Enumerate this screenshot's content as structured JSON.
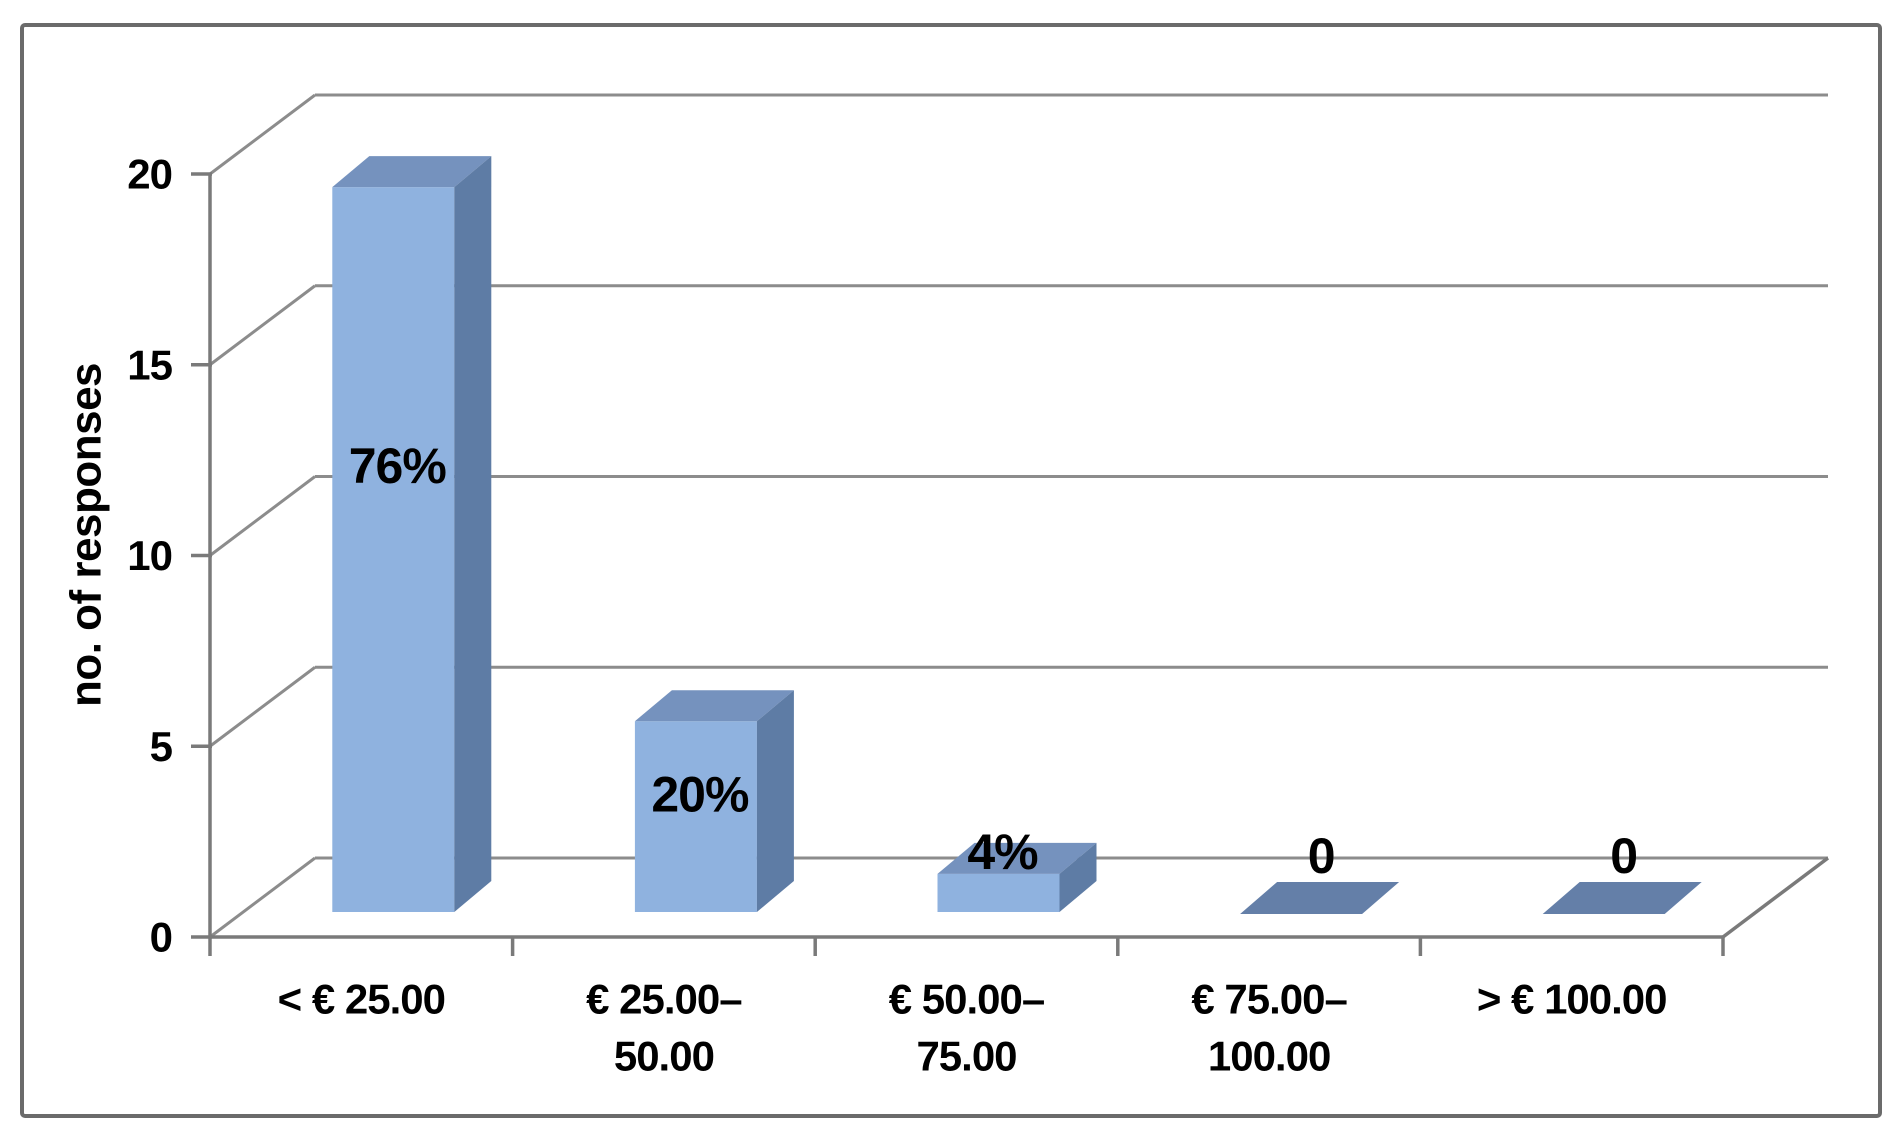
{
  "chart_data": {
    "type": "bar",
    "projection": "3d",
    "ylabel": "no. of responses",
    "ylim": [
      0,
      20
    ],
    "y_ticks": [
      0,
      5,
      10,
      15,
      20
    ],
    "gridlines": true,
    "legend": "none",
    "bars": [
      {
        "category_lines": [
          "< € 25.00"
        ],
        "value": 19,
        "label": "76%",
        "label_pos": "inside"
      },
      {
        "category_lines": [
          "€ 25.00–",
          "50.00"
        ],
        "value": 5,
        "label": "20%",
        "label_pos": "inside"
      },
      {
        "category_lines": [
          "€ 50.00–",
          "75.00"
        ],
        "value": 1,
        "label": "4%",
        "label_pos": "above"
      },
      {
        "category_lines": [
          "€ 75.00–",
          "100.00"
        ],
        "value": 0,
        "label": "0",
        "label_pos": "above"
      },
      {
        "category_lines": [
          "> € 100.00"
        ],
        "value": 0,
        "label": "0",
        "label_pos": "above"
      }
    ],
    "colors": {
      "bar_front": "#8FB2DF",
      "bar_top": "#7592BE",
      "bar_side": "#5E7CA5",
      "bar_flat": "#647FA8",
      "gridline": "#8C8C8C",
      "axis": "#7A7A7A",
      "border": "#6B6B6B",
      "text": "#000000",
      "background": "#FFFFFF"
    }
  }
}
